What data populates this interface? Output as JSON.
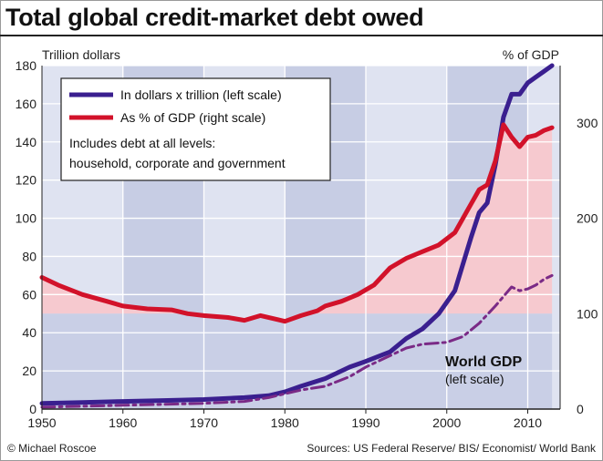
{
  "title": "Total global credit-market debt owed",
  "credit": "© Michael Roscoe",
  "sources": "Sources: US Federal Reserve/ BIS/ Economist/ World Bank",
  "colors": {
    "debt_dollars": "#3a1f8f",
    "debt_gdp": "#d2122a",
    "world_gdp": "#7a2a86",
    "pink_fill": "#f6c9cf",
    "blue_fill": "#c9cfe6",
    "band_light": "#dfe3f1",
    "band_dark": "#c7cde4"
  },
  "legend": {
    "series1": "In dollars x trillion (left scale)",
    "series2": "As % of GDP (right scale)",
    "note_line1": "Includes debt at all levels:",
    "note_line2": "household, corporate and government"
  },
  "annotation": {
    "line1": "World GDP",
    "line2": "(left scale)"
  },
  "chart_data": {
    "type": "line",
    "ylabel_left": "Trillion dollars",
    "ylabel_right": "% of GDP",
    "xlim": [
      1950,
      2014
    ],
    "ylim_left": [
      0,
      180
    ],
    "ylim_right": [
      0,
      360
    ],
    "x_ticks": [
      1950,
      1960,
      1970,
      1980,
      1990,
      2000,
      2010
    ],
    "y_ticks_left": [
      0,
      20,
      40,
      60,
      80,
      100,
      120,
      140,
      160,
      180
    ],
    "y_ticks_right": [
      0,
      100,
      200,
      300
    ],
    "series": [
      {
        "name": "In dollars x trillion (left scale)",
        "axis": "left",
        "style": "solid",
        "x": [
          1950,
          1955,
          1960,
          1965,
          1970,
          1975,
          1978,
          1980,
          1982,
          1985,
          1988,
          1990,
          1993,
          1995,
          1997,
          1999,
          2001,
          2003,
          2004,
          2005,
          2006,
          2007,
          2008,
          2009,
          2010,
          2011,
          2012,
          2013
        ],
        "y": [
          3,
          3.5,
          4,
          4.5,
          5,
          6,
          7,
          9,
          12,
          16,
          22,
          25,
          30,
          37,
          42,
          50,
          62,
          90,
          103,
          108,
          128,
          153,
          165,
          165,
          171,
          174,
          177,
          180
        ]
      },
      {
        "name": "As % of GDP (right scale)",
        "axis": "right",
        "style": "solid",
        "x": [
          1950,
          1952,
          1955,
          1958,
          1960,
          1963,
          1966,
          1968,
          1970,
          1973,
          1975,
          1977,
          1979,
          1980,
          1982,
          1984,
          1985,
          1987,
          1989,
          1991,
          1993,
          1995,
          1997,
          1999,
          2001,
          2003,
          2004,
          2005,
          2006,
          2007,
          2008,
          2009,
          2010,
          2011,
          2012,
          2013
        ],
        "y": [
          138,
          130,
          120,
          113,
          108,
          105,
          104,
          100,
          98,
          96,
          93,
          98,
          94,
          92,
          98,
          103,
          108,
          113,
          120,
          130,
          148,
          158,
          165,
          172,
          185,
          215,
          230,
          235,
          260,
          298,
          285,
          275,
          285,
          287,
          292,
          295
        ]
      },
      {
        "name": "World GDP",
        "axis": "left",
        "style": "dashdot",
        "x": [
          1950,
          1955,
          1960,
          1965,
          1970,
          1975,
          1978,
          1980,
          1982,
          1985,
          1988,
          1990,
          1993,
          1995,
          1997,
          2000,
          2002,
          2004,
          2006,
          2008,
          2009,
          2010,
          2011,
          2012,
          2013
        ],
        "y": [
          1,
          1.5,
          2,
          2.5,
          3,
          4,
          6,
          8,
          10,
          12,
          17,
          22,
          28,
          32,
          34,
          35,
          38,
          45,
          54,
          64,
          62,
          63,
          65,
          68,
          70
        ]
      }
    ]
  }
}
